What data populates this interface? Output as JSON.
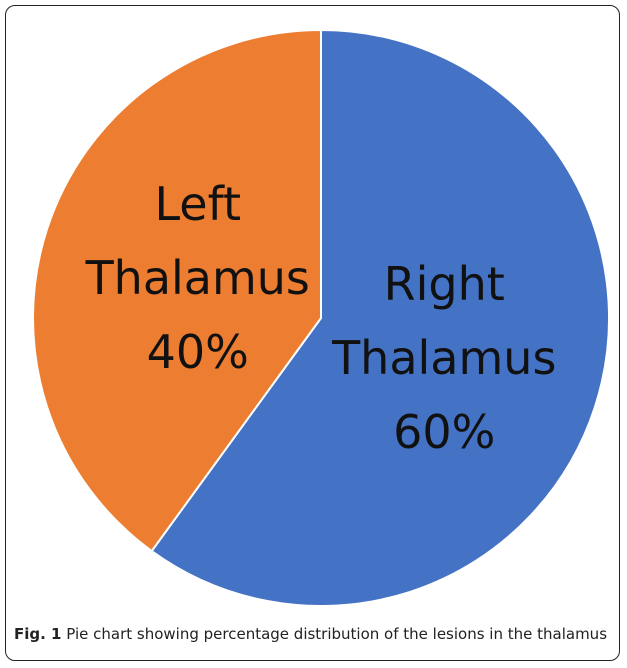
{
  "chart_data": {
    "type": "pie",
    "categories": [
      "Right Thalamus",
      "Left Thalamus"
    ],
    "values": [
      60,
      40
    ],
    "value_labels": [
      "60%",
      "40%"
    ],
    "colors": [
      "#4472c4",
      "#ed7d31"
    ],
    "caption_label": "Fig. 1",
    "caption": "Pie chart showing percentage distribution of the lesions in the thalamus"
  }
}
